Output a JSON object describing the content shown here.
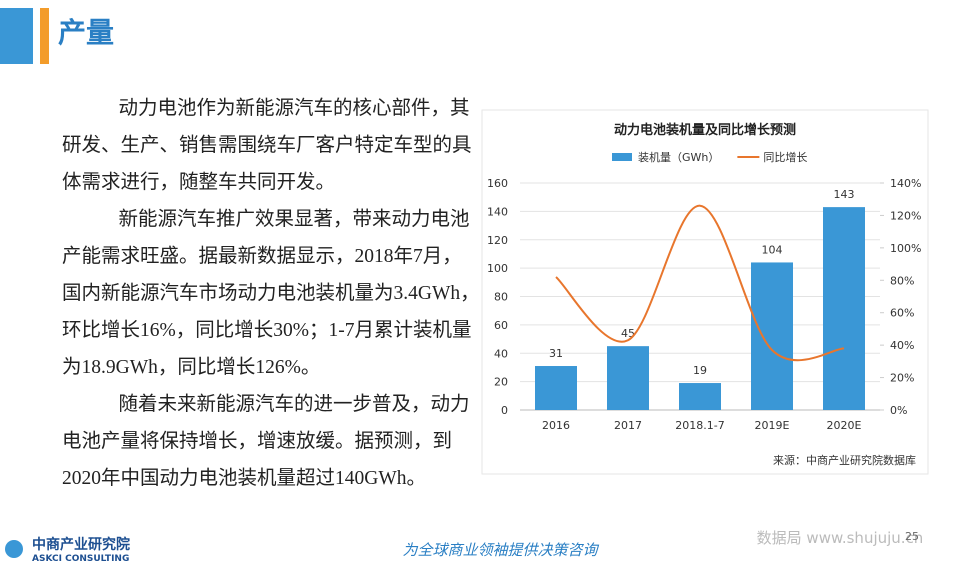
{
  "header": {
    "title": "产量"
  },
  "paragraphs": [
    [
      "动力电池作为新能源汽车的核心部件，其",
      "研发、生产、销售需围绕车厂客户特定车型的具",
      "体需求进行，随整车共同开发。"
    ],
    [
      "新能源汽车推广效果显著，带来动力电池",
      "产能需求旺盛。据最新数据显示，2018年7月，",
      "国内新能源汽车市场动力电池装机量为3.4GWh，",
      "环比增长16%，同比增长30%；1-7月累计装机量",
      "为18.9GWh，同比增长126%。"
    ],
    [
      "随着未来新能源汽车的进一步普及，动力",
      "电池产量将保持增长，增速放缓。据预测，到",
      "2020年中国动力电池装机量超过140GWh。"
    ]
  ],
  "chart_data": {
    "type": "combo",
    "title": "动力电池装机量及同比增长预测",
    "categories": [
      "2016",
      "2017",
      "2018.1-7",
      "2019E",
      "2020E"
    ],
    "series": [
      {
        "name": "装机量（GWh）",
        "color": "#3a97d6",
        "type": "bar",
        "values": [
          31,
          45,
          19,
          104,
          143
        ]
      },
      {
        "name": "同比增长",
        "color": "#e8762d",
        "type": "line",
        "axis": "y2",
        "values": [
          82,
          43,
          126,
          37,
          38
        ]
      }
    ],
    "ylim": [
      0,
      160
    ],
    "yticks": [
      0,
      20,
      40,
      60,
      80,
      100,
      120,
      140,
      160
    ],
    "y2lim": [
      0,
      140
    ],
    "y2ticks": [
      {
        "value": 0,
        "label": "0%"
      },
      {
        "value": 20,
        "label": "20%"
      },
      {
        "value": 40,
        "label": "40%"
      },
      {
        "value": 60,
        "label": "60%"
      },
      {
        "value": 80,
        "label": "80%"
      },
      {
        "value": 100,
        "label": "100%"
      },
      {
        "value": 120,
        "label": "120%"
      },
      {
        "value": 140,
        "label": "140%"
      }
    ],
    "grid": true,
    "source": "来源：中商产业研究院数据库"
  },
  "footer": {
    "company": "中商产业研究院",
    "company_en": "ASKCI CONSULTING",
    "slogan": "为全球商业领袖提供决策咨询",
    "page": "25",
    "watermark": "数据局 www.shujuju.cn"
  }
}
